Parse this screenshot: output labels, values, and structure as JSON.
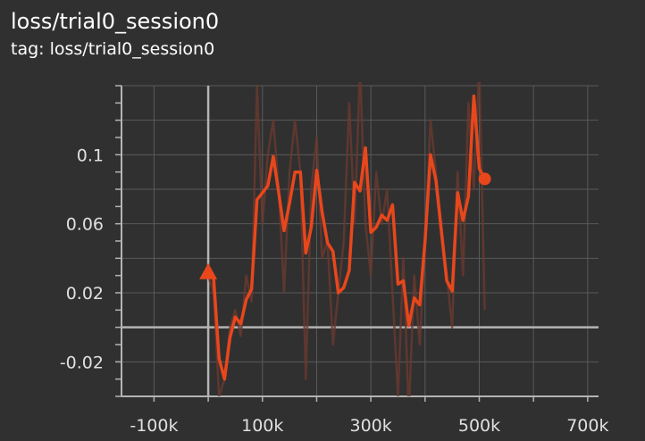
{
  "header": {
    "title": "loss/trial0_session0",
    "subtitle": "tag: loss/trial0_session0"
  },
  "colors": {
    "background": "#303030",
    "grid": "#5a5a5a",
    "axis": "#b4b4b4",
    "series": "#e8471c",
    "raw_series": "#6a3a30"
  },
  "chart_data": {
    "type": "line",
    "title": "",
    "xlabel": "",
    "ylabel": "",
    "xlim": [
      -160000,
      720000
    ],
    "ylim": [
      -0.04,
      0.14
    ],
    "x_ticks": [
      -100000,
      0,
      100000,
      200000,
      300000,
      400000,
      500000,
      600000,
      700000
    ],
    "x_tick_labels": [
      "-100k",
      "",
      "100k",
      "",
      "300k",
      "",
      "500k",
      "",
      "700k"
    ],
    "y_ticks": [
      -0.02,
      0.02,
      0.06,
      0.1
    ],
    "y_tick_labels": [
      "-0.02",
      "0.02",
      "0.06",
      "0.1"
    ],
    "grid": true,
    "series": [
      {
        "style": "raw",
        "x": [
          0,
          10000,
          20000,
          30000,
          40000,
          50000,
          60000,
          70000,
          80000,
          90000,
          100000,
          110000,
          120000,
          130000,
          140000,
          150000,
          160000,
          170000,
          180000,
          190000,
          200000,
          210000,
          220000,
          230000,
          240000,
          250000,
          260000,
          270000,
          280000,
          290000,
          300000,
          310000,
          320000,
          330000,
          340000,
          350000,
          360000,
          370000,
          380000,
          390000,
          400000,
          410000,
          420000,
          430000,
          440000,
          450000,
          460000,
          470000,
          480000,
          490000,
          500000,
          510000
        ],
        "y": [
          0.03,
          0.02,
          -0.04,
          -0.03,
          0.0,
          0.01,
          -0.005,
          0.03,
          0.015,
          0.14,
          0.06,
          0.1,
          0.12,
          0.08,
          0.02,
          0.09,
          0.12,
          0.09,
          -0.03,
          0.08,
          0.11,
          0.04,
          0.05,
          -0.01,
          0.02,
          0.05,
          0.13,
          0.06,
          0.15,
          0.06,
          0.03,
          0.09,
          0.06,
          0.08,
          0.02,
          -0.04,
          0.04,
          -0.05,
          0.03,
          -0.01,
          0.05,
          0.12,
          0.09,
          0.06,
          0.03,
          0.0,
          0.09,
          0.03,
          0.13,
          0.08,
          0.15,
          0.01
        ]
      },
      {
        "style": "smoothed",
        "x": [
          0,
          10000,
          20000,
          30000,
          40000,
          50000,
          60000,
          70000,
          80000,
          90000,
          100000,
          110000,
          120000,
          130000,
          140000,
          150000,
          160000,
          170000,
          180000,
          190000,
          200000,
          210000,
          220000,
          230000,
          240000,
          250000,
          260000,
          270000,
          280000,
          290000,
          300000,
          310000,
          320000,
          330000,
          340000,
          350000,
          360000,
          370000,
          380000,
          390000,
          400000,
          410000,
          420000,
          430000,
          440000,
          450000,
          460000,
          470000,
          480000,
          490000,
          500000,
          510000
        ],
        "y": [
          0.032,
          0.028,
          -0.018,
          -0.03,
          -0.006,
          0.006,
          0.002,
          0.016,
          0.022,
          0.074,
          0.078,
          0.082,
          0.099,
          0.078,
          0.056,
          0.072,
          0.09,
          0.09,
          0.043,
          0.058,
          0.091,
          0.067,
          0.049,
          0.044,
          0.02,
          0.023,
          0.033,
          0.084,
          0.079,
          0.104,
          0.055,
          0.058,
          0.065,
          0.062,
          0.071,
          0.025,
          0.027,
          0.001,
          0.017,
          0.013,
          0.05,
          0.1,
          0.085,
          0.056,
          0.027,
          0.021,
          0.078,
          0.062,
          0.076,
          0.134,
          0.092,
          0.086
        ]
      }
    ],
    "markers": {
      "start": {
        "x": 0,
        "y": 0.032,
        "shape": "triangle"
      },
      "end": {
        "x": 510000,
        "y": 0.086,
        "shape": "circle"
      }
    }
  }
}
